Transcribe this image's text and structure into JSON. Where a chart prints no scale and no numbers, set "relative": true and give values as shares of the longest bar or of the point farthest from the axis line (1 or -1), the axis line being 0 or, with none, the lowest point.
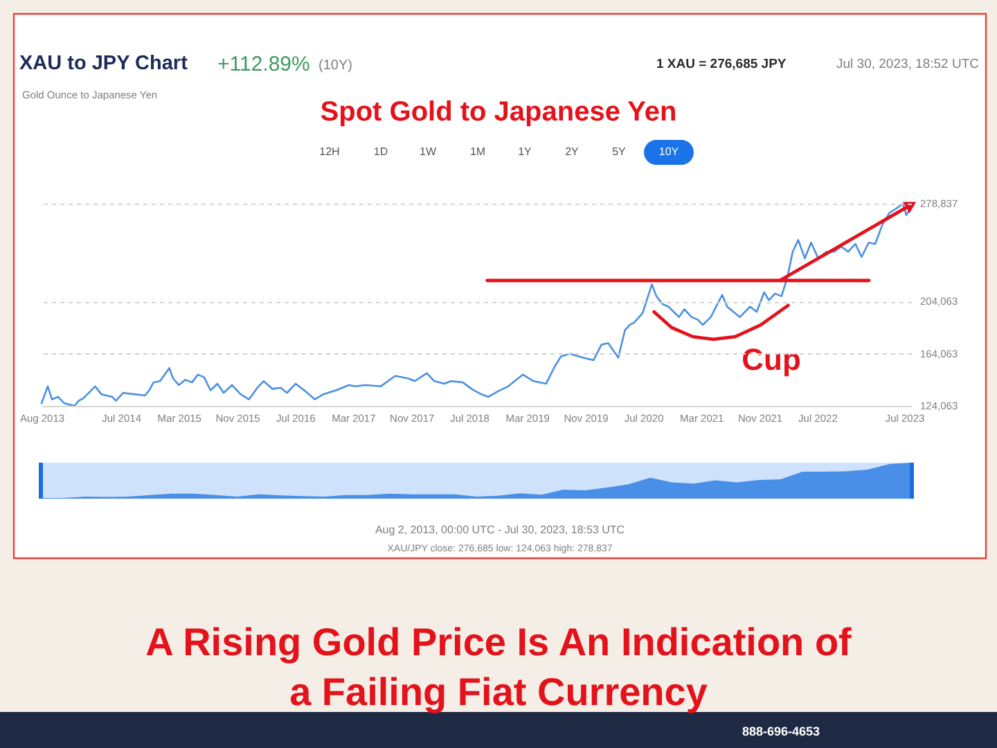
{
  "chart_data": [
    {
      "type": "line",
      "title": "XAU to JPY Chart",
      "subtitle": "Gold Ounce to Japanese Yen",
      "annotations": [
        "+112.89%",
        "(10Y)",
        "1 XAU = 276,685 JPY",
        "Jul 30, 2023, 18:52 UTC",
        "Spot Gold to Japanese Yen",
        "12H",
        "1D",
        "1W",
        "1M",
        "1Y",
        "2Y",
        "5Y",
        "10Y",
        "Cup",
        "A Rising Gold Price Is An Indication of a Failing Fiat Currency",
        "888-696-4653"
      ],
      "series": [
        {
          "color": "#4a90e2",
          "x": [
            "2013-08-02",
            "2013-08-28",
            "2013-09-15",
            "2013-10-10",
            "2013-11-06",
            "2013-12-18",
            "2014-01-05",
            "2014-01-25",
            "2014-03-15",
            "2014-04-10",
            "2014-05-25",
            "2014-06-10",
            "2014-07-10",
            "2014-08-25",
            "2014-10-10",
            "2014-10-28",
            "2014-11-15",
            "2014-12-12",
            "2015-01-20",
            "2015-02-05",
            "2015-03-01",
            "2015-03-28",
            "2015-04-25",
            "2015-05-20",
            "2015-06-15",
            "2015-07-12",
            "2015-08-10",
            "2015-09-05",
            "2015-10-10",
            "2015-11-15",
            "2015-12-20",
            "2016-01-25",
            "2016-02-20",
            "2016-03-28",
            "2016-05-01",
            "2016-05-28",
            "2016-07-03",
            "2016-08-15",
            "2016-09-22",
            "2016-10-28",
            "2016-12-20",
            "2017-02-12",
            "2017-03-10",
            "2017-04-22",
            "2017-06-25",
            "2017-08-25",
            "2017-10-20",
            "2017-11-15",
            "2018-01-05",
            "2018-02-05",
            "2018-03-20",
            "2018-04-15",
            "2018-06-05",
            "2018-07-12",
            "2018-08-20",
            "2018-09-20",
            "2018-10-28",
            "2018-12-12",
            "2019-02-12",
            "2019-03-28",
            "2019-05-20",
            "2019-06-25",
            "2019-07-22",
            "2019-08-28",
            "2019-10-20",
            "2019-12-05",
            "2020-01-08",
            "2020-02-05",
            "2020-03-18",
            "2020-04-15",
            "2020-05-05",
            "2020-05-25",
            "2020-06-28",
            "2020-08-06",
            "2020-08-25",
            "2020-09-20",
            "2020-10-15",
            "2020-11-28",
            "2020-12-20",
            "2021-01-20",
            "2021-02-15",
            "2021-03-08",
            "2021-04-10",
            "2021-05-28",
            "2021-06-18",
            "2021-08-10",
            "2021-09-22",
            "2021-10-20",
            "2021-11-20",
            "2021-12-10",
            "2022-01-05",
            "2022-02-01",
            "2022-02-25",
            "2022-03-20",
            "2022-04-12",
            "2022-05-10",
            "2022-06-05",
            "2022-07-05",
            "2022-08-08",
            "2022-09-10",
            "2022-10-10",
            "2022-11-08",
            "2022-12-08",
            "2023-01-03",
            "2023-02-02",
            "2023-03-01",
            "2023-04-01",
            "2023-05-01",
            "2023-05-28",
            "2023-06-25",
            "2023-07-10",
            "2023-07-30"
          ],
          "values": [
            126000,
            139000,
            129000,
            131000,
            126000,
            124063,
            128000,
            130000,
            139000,
            133000,
            131000,
            128000,
            134000,
            133000,
            132000,
            136000,
            142000,
            143000,
            153000,
            145000,
            140000,
            144000,
            142000,
            148000,
            146000,
            136000,
            141000,
            134000,
            140000,
            133000,
            129000,
            138000,
            143000,
            137000,
            138000,
            134000,
            141000,
            135000,
            129000,
            133000,
            136000,
            140000,
            139000,
            140000,
            139000,
            147000,
            145000,
            143000,
            149000,
            143000,
            141000,
            143000,
            142000,
            137000,
            133000,
            131000,
            135000,
            139000,
            148000,
            143000,
            141000,
            154000,
            162000,
            164000,
            161000,
            159000,
            171000,
            172000,
            161000,
            182000,
            186000,
            188000,
            195000,
            217000,
            208000,
            202000,
            200000,
            192000,
            198000,
            192000,
            190000,
            186000,
            192000,
            209000,
            200000,
            192000,
            200000,
            196000,
            211000,
            205000,
            210000,
            208000,
            222000,
            242000,
            251000,
            237000,
            249000,
            237000,
            242000,
            242000,
            246000,
            242000,
            248000,
            238000,
            249000,
            248000,
            263000,
            272000,
            275000,
            278837,
            270000,
            276685
          ]
        },
        {
          "color": "#e3121b",
          "x": [
            "2018-09-15",
            "2023-02-03"
          ],
          "values": [
            220000,
            220000
          ]
        },
        {
          "color": "#e3121b",
          "x": [
            "2022-01-25",
            "2023-07-30"
          ],
          "values": [
            220000,
            278000
          ],
          "marker": "triangle"
        },
        {
          "color": "#e3121b",
          "x": [
            "2020-08-15",
            "2020-10-28",
            "2021-01-25",
            "2021-04-22",
            "2021-07-22",
            "2021-11-06",
            "2022-03-01"
          ],
          "values": [
            196000,
            184000,
            177000,
            175000,
            177000,
            186000,
            201000
          ]
        }
      ],
      "xlim": [
        "2013-08-02",
        "2023-07-30"
      ],
      "xticks": [
        {
          "value": "2013-08-02",
          "label": "Aug 2013"
        },
        {
          "value": "2014-07",
          "label": "Jul 2014"
        },
        {
          "value": "2015-03",
          "label": "Mar 2015"
        },
        {
          "value": "2015-11",
          "label": "Nov 2015"
        },
        {
          "value": "2016-07",
          "label": "Jul 2016"
        },
        {
          "value": "2017-03",
          "label": "Mar 2017"
        },
        {
          "value": "2017-11",
          "label": "Nov 2017"
        },
        {
          "value": "2018-07",
          "label": "Jul 2018"
        },
        {
          "value": "2019-03",
          "label": "Mar 2019"
        },
        {
          "value": "2019-11",
          "label": "Nov 2019"
        },
        {
          "value": "2020-07",
          "label": "Jul 2020"
        },
        {
          "value": "2021-03",
          "label": "Mar 2021"
        },
        {
          "value": "2021-11",
          "label": "Nov 2021"
        },
        {
          "value": "2022-07",
          "label": "Jul 2022"
        },
        {
          "value": "2023-07",
          "label": "Jul 2023"
        }
      ],
      "ylim": [
        124063,
        278837
      ],
      "yticks": [
        {
          "value": 124063,
          "label": "124,063"
        },
        {
          "value": 164063,
          "label": "164,063"
        },
        {
          "value": 204063,
          "label": "204,063"
        },
        {
          "value": 278837,
          "label": "278,837"
        }
      ],
      "grid": "y"
    },
    {
      "type": "area",
      "relative": true,
      "color": "#4a8fe7",
      "categories": [
        null,
        null,
        null,
        null,
        null,
        null,
        null,
        null,
        null,
        null,
        null,
        null,
        null,
        null,
        null,
        null,
        null,
        null,
        null,
        null,
        null,
        null,
        null,
        null,
        null,
        null,
        null,
        null,
        null,
        null,
        null,
        null,
        null,
        null,
        null,
        null,
        null,
        null,
        null,
        null,
        null
      ],
      "values": [
        0.02,
        0.02,
        0.06,
        0.05,
        0.06,
        0.1,
        0.14,
        0.14,
        0.1,
        0.06,
        0.12,
        0.09,
        0.07,
        0.06,
        0.1,
        0.1,
        0.14,
        0.12,
        0.12,
        0.12,
        0.06,
        0.08,
        0.15,
        0.11,
        0.25,
        0.23,
        0.31,
        0.4,
        0.58,
        0.45,
        0.42,
        0.51,
        0.45,
        0.52,
        0.54,
        0.75,
        0.75,
        0.76,
        0.81,
        0.96,
        1
      ],
      "annotations": [
        "Aug 2, 2013, 00:00 UTC - Jul 30, 2023, 18:53 UTC",
        "XAU/JPY close: 276,685 low: 124,063 high: 278,837"
      ]
    }
  ]
}
